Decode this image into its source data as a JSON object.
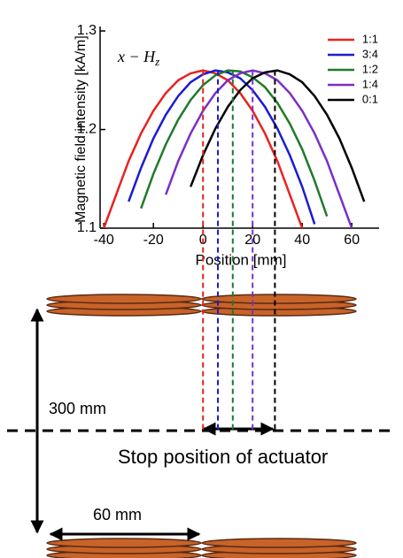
{
  "chart_data": {
    "type": "line",
    "annotation": {
      "text": "x − H",
      "sub": "z"
    },
    "x_label": "Position [mm]",
    "y_label": "Magnetic field intensity [kA/m]",
    "x": [
      -40,
      -35,
      -30,
      -25,
      -20,
      -15,
      -10,
      -5,
      0,
      5,
      10,
      15,
      20,
      25,
      30,
      35,
      40,
      45,
      50,
      55,
      60,
      65
    ],
    "series": [
      {
        "name": "1:1",
        "color": "#e8231f",
        "peak": 0,
        "values": [
          1.1,
          1.134,
          1.168,
          1.196,
          1.219,
          1.237,
          1.25,
          1.257,
          1.26,
          1.257,
          1.25,
          1.237,
          1.219,
          1.196,
          1.168,
          1.134,
          1.1,
          null,
          null,
          null,
          null,
          null
        ]
      },
      {
        "name": "3:4",
        "color": "#1c1cd0",
        "peak": 6,
        "values": [
          null,
          null,
          1.127,
          1.161,
          1.191,
          1.215,
          1.234,
          1.248,
          1.256,
          1.26,
          1.258,
          1.252,
          1.24,
          1.223,
          1.201,
          1.174,
          1.142,
          1.104,
          null,
          null,
          null,
          null
        ]
      },
      {
        "name": "1:2",
        "color": "#1f7a2a",
        "peak": 12,
        "values": [
          null,
          null,
          null,
          1.12,
          1.155,
          1.185,
          1.21,
          1.23,
          1.245,
          1.255,
          1.26,
          1.259,
          1.253,
          1.243,
          1.227,
          1.206,
          1.18,
          1.148,
          1.112,
          null,
          null,
          null
        ]
      },
      {
        "name": "1:4",
        "color": "#7a2fc8",
        "peak": 20,
        "values": [
          null,
          null,
          null,
          null,
          null,
          1.134,
          1.168,
          1.196,
          1.219,
          1.237,
          1.25,
          1.257,
          1.26,
          1.257,
          1.25,
          1.237,
          1.219,
          1.196,
          1.168,
          1.134,
          1.1,
          null
        ]
      },
      {
        "name": "0:1",
        "color": "#000000",
        "peak": 29,
        "values": [
          null,
          null,
          null,
          null,
          null,
          null,
          null,
          1.142,
          1.174,
          1.201,
          1.223,
          1.24,
          1.252,
          1.258,
          1.26,
          1.256,
          1.248,
          1.234,
          1.215,
          1.191,
          1.161,
          1.127
        ]
      }
    ],
    "xlim": [
      -41.5,
      71
    ],
    "ylim": [
      1.1,
      1.3
    ],
    "xticks": [
      -40,
      -20,
      0,
      20,
      40,
      60
    ],
    "yticks": [
      1.1,
      1.2,
      1.3
    ],
    "legend": "top-right"
  },
  "diagram": {
    "distance_label": "300 mm",
    "width_label": "60 mm",
    "stop_label": "Stop position of actuator"
  }
}
